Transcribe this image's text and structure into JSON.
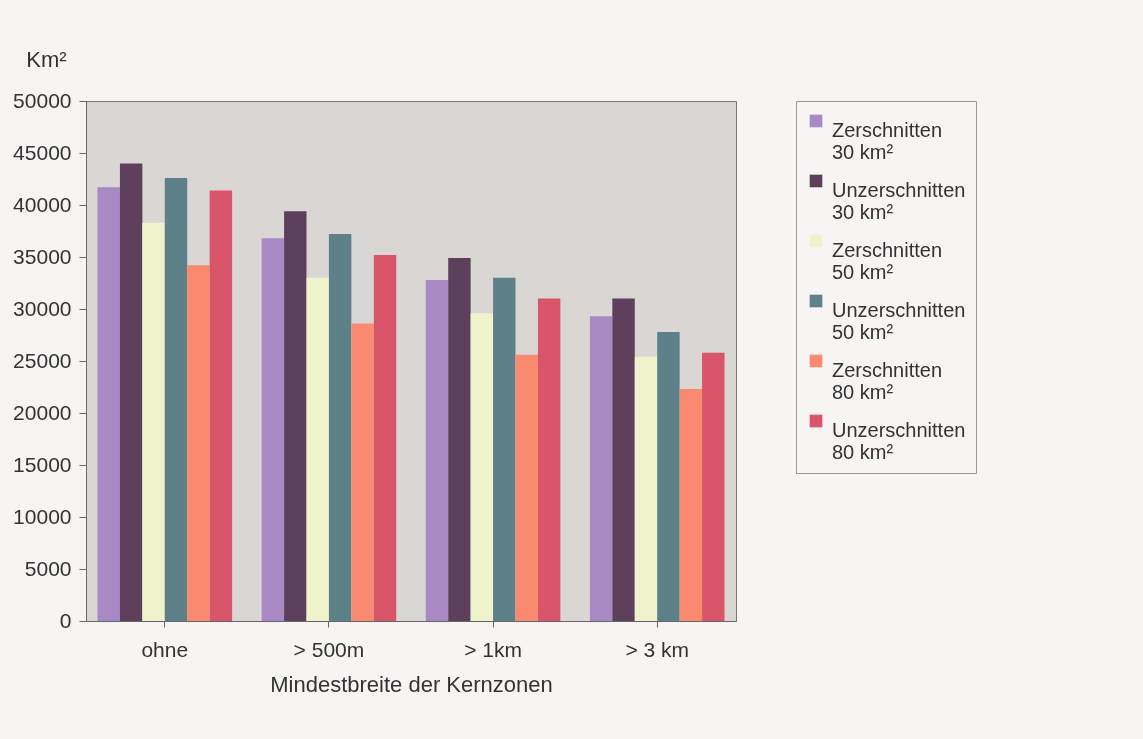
{
  "chart_data": {
    "type": "bar",
    "xlabel": "Mindestbreite der Kernzonen",
    "ylabel": "Km²",
    "categories": [
      "ohne",
      "> 500m",
      "> 1km",
      "> 3 km"
    ],
    "series": [
      {
        "name": "Zerschnitten 30 km²",
        "color": "#a889c4",
        "values": [
          41700,
          36800,
          32800,
          29300
        ]
      },
      {
        "name": "Unzerschnitten 30 km²",
        "color": "#5e3f5c",
        "values": [
          44000,
          39400,
          34900,
          31000
        ]
      },
      {
        "name": "Zerschnitten 50 km²",
        "color": "#eef3cc",
        "values": [
          38300,
          33000,
          29600,
          25400
        ]
      },
      {
        "name": "Unzerschnitten 50 km²",
        "color": "#5e8189",
        "values": [
          42600,
          37200,
          33000,
          27800
        ]
      },
      {
        "name": "Zerschnitten 80 km²",
        "color": "#f98a70",
        "values": [
          34200,
          28600,
          25600,
          22300
        ]
      },
      {
        "name": "Unzerschnitten 80 km²",
        "color": "#d9566a",
        "values": [
          41400,
          35200,
          31000,
          25800
        ]
      }
    ],
    "ylim": [
      0,
      50000
    ],
    "yticks": [
      0,
      5000,
      10000,
      15000,
      20000,
      25000,
      30000,
      35000,
      40000,
      45000,
      50000
    ],
    "grid": false,
    "legend": "right"
  }
}
